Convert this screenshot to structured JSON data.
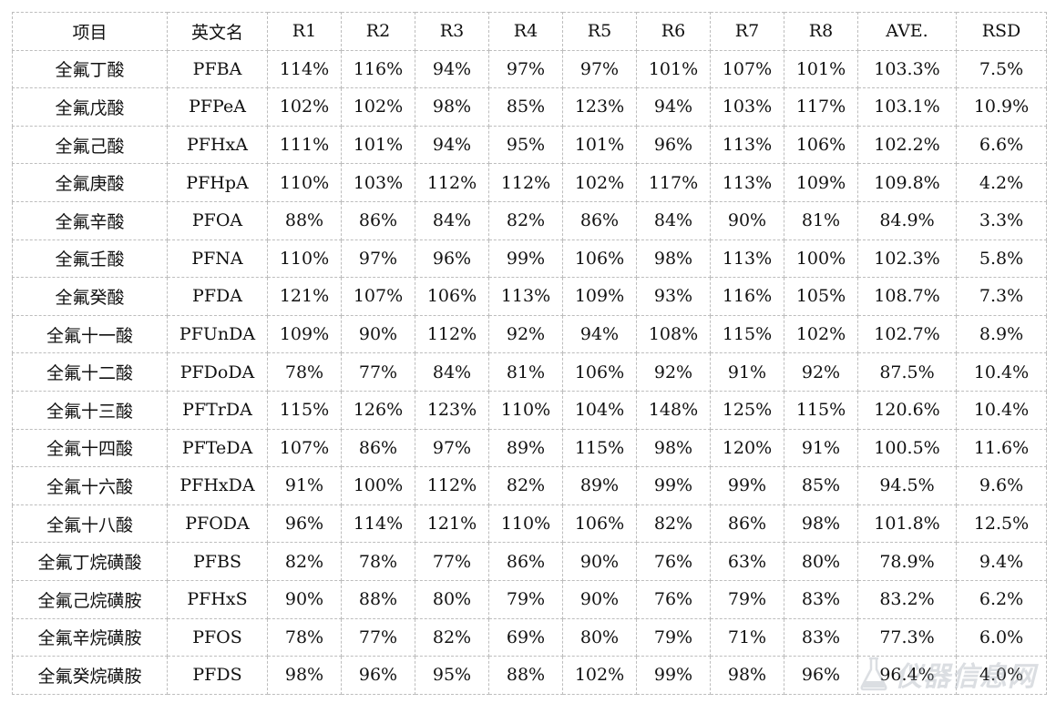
{
  "table": {
    "headers": [
      "项目",
      "英文名",
      "R1",
      "R2",
      "R3",
      "R4",
      "R5",
      "R6",
      "R7",
      "R8",
      "AVE.",
      "RSD"
    ],
    "rows": [
      [
        "全氟丁酸",
        "PFBA",
        "114%",
        "116%",
        "94%",
        "97%",
        "97%",
        "101%",
        "107%",
        "101%",
        "103.3%",
        "7.5%"
      ],
      [
        "全氟戊酸",
        "PFPeA",
        "102%",
        "102%",
        "98%",
        "85%",
        "123%",
        "94%",
        "103%",
        "117%",
        "103.1%",
        "10.9%"
      ],
      [
        "全氟己酸",
        "PFHxA",
        "111%",
        "101%",
        "94%",
        "95%",
        "101%",
        "96%",
        "113%",
        "106%",
        "102.2%",
        "6.6%"
      ],
      [
        "全氟庚酸",
        "PFHpA",
        "110%",
        "103%",
        "112%",
        "112%",
        "102%",
        "117%",
        "113%",
        "109%",
        "109.8%",
        "4.2%"
      ],
      [
        "全氟辛酸",
        "PFOA",
        "88%",
        "86%",
        "84%",
        "82%",
        "86%",
        "84%",
        "90%",
        "81%",
        "84.9%",
        "3.3%"
      ],
      [
        "全氟壬酸",
        "PFNA",
        "110%",
        "97%",
        "96%",
        "99%",
        "106%",
        "98%",
        "113%",
        "100%",
        "102.3%",
        "5.8%"
      ],
      [
        "全氟癸酸",
        "PFDA",
        "121%",
        "107%",
        "106%",
        "113%",
        "109%",
        "93%",
        "116%",
        "105%",
        "108.7%",
        "7.3%"
      ],
      [
        "全氟十一酸",
        "PFUnDA",
        "109%",
        "90%",
        "112%",
        "92%",
        "94%",
        "108%",
        "115%",
        "102%",
        "102.7%",
        "8.9%"
      ],
      [
        "全氟十二酸",
        "PFDoDA",
        "78%",
        "77%",
        "84%",
        "81%",
        "106%",
        "92%",
        "91%",
        "92%",
        "87.5%",
        "10.4%"
      ],
      [
        "全氟十三酸",
        "PFTrDA",
        "115%",
        "126%",
        "123%",
        "110%",
        "104%",
        "148%",
        "125%",
        "115%",
        "120.6%",
        "10.4%"
      ],
      [
        "全氟十四酸",
        "PFTeDA",
        "107%",
        "86%",
        "97%",
        "89%",
        "115%",
        "98%",
        "120%",
        "91%",
        "100.5%",
        "11.6%"
      ],
      [
        "全氟十六酸",
        "PFHxDA",
        "91%",
        "100%",
        "112%",
        "82%",
        "89%",
        "99%",
        "99%",
        "85%",
        "94.5%",
        "9.6%"
      ],
      [
        "全氟十八酸",
        "PFODA",
        "96%",
        "114%",
        "121%",
        "110%",
        "106%",
        "82%",
        "86%",
        "98%",
        "101.8%",
        "12.5%"
      ],
      [
        "全氟丁烷磺酸",
        "PFBS",
        "82%",
        "78%",
        "77%",
        "86%",
        "90%",
        "76%",
        "63%",
        "80%",
        "78.9%",
        "9.4%"
      ],
      [
        "全氟己烷磺胺",
        "PFHxS",
        "90%",
        "88%",
        "80%",
        "79%",
        "90%",
        "76%",
        "79%",
        "83%",
        "83.2%",
        "6.2%"
      ],
      [
        "全氟辛烷磺胺",
        "PFOS",
        "78%",
        "77%",
        "82%",
        "69%",
        "80%",
        "79%",
        "71%",
        "83%",
        "77.3%",
        "6.0%"
      ],
      [
        "全氟癸烷磺胺",
        "PFDS",
        "98%",
        "96%",
        "95%",
        "88%",
        "102%",
        "99%",
        "98%",
        "96%",
        "96.4%",
        "4.0%"
      ]
    ]
  },
  "watermark": {
    "text": "仪器信息网",
    "icon": "flask-icon",
    "color": "#9aa3ad"
  }
}
